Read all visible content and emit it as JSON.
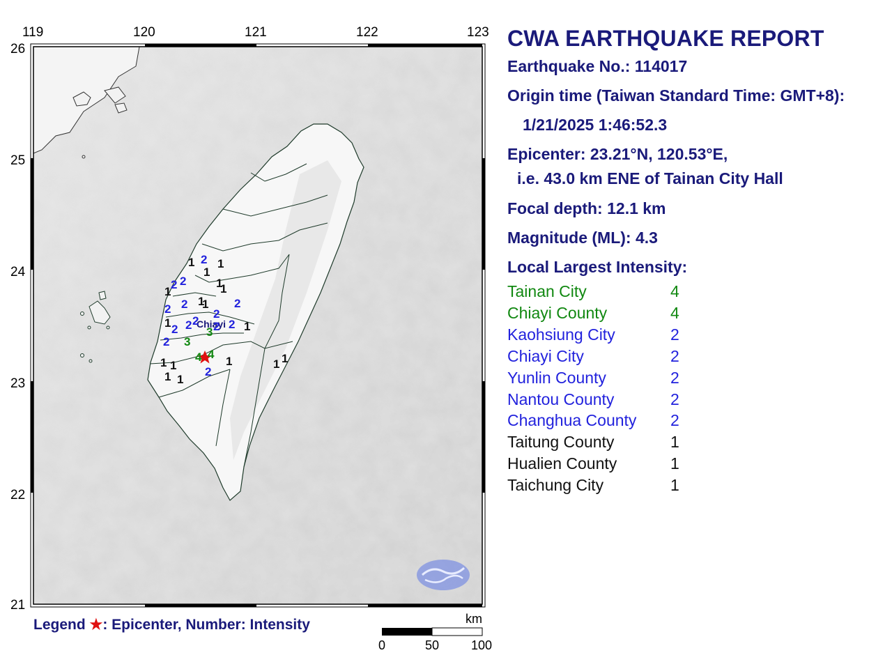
{
  "map": {
    "lon_ticks": [
      "119",
      "120",
      "121",
      "122",
      "123"
    ],
    "lat_ticks": [
      "26",
      "25",
      "24",
      "23",
      "22",
      "21"
    ],
    "city_label": "Chiayi",
    "epicenter_symbol": "star",
    "logo": "CWA-cloud-logo",
    "station_intensities": [
      {
        "v": "1",
        "c": "black"
      },
      {
        "v": "2",
        "c": "blue"
      },
      {
        "v": "1",
        "c": "black"
      },
      {
        "v": "1",
        "c": "black"
      },
      {
        "v": "2",
        "c": "blue"
      },
      {
        "v": "2",
        "c": "blue"
      },
      {
        "v": "1",
        "c": "black"
      },
      {
        "v": "1",
        "c": "black"
      },
      {
        "v": "1",
        "c": "black"
      },
      {
        "v": "2",
        "c": "blue"
      },
      {
        "v": "2",
        "c": "blue"
      },
      {
        "v": "1",
        "c": "black"
      },
      {
        "v": "1",
        "c": "black"
      },
      {
        "v": "2",
        "c": "blue"
      },
      {
        "v": "2",
        "c": "blue"
      },
      {
        "v": "1",
        "c": "black"
      },
      {
        "v": "2",
        "c": "blue"
      },
      {
        "v": "2",
        "c": "blue"
      },
      {
        "v": "2",
        "c": "blue"
      },
      {
        "v": "2",
        "c": "blue"
      },
      {
        "v": "2",
        "c": "blue"
      },
      {
        "v": "1",
        "c": "black"
      },
      {
        "v": "3",
        "c": "green"
      },
      {
        "v": "3",
        "c": "green"
      },
      {
        "v": "2",
        "c": "blue"
      },
      {
        "v": "4",
        "c": "green"
      },
      {
        "v": "4",
        "c": "green"
      },
      {
        "v": "1",
        "c": "black"
      },
      {
        "v": "1",
        "c": "black"
      },
      {
        "v": "1",
        "c": "black"
      },
      {
        "v": "2",
        "c": "blue"
      },
      {
        "v": "1",
        "c": "black"
      },
      {
        "v": "1",
        "c": "black"
      },
      {
        "v": "1",
        "c": "black"
      },
      {
        "v": "1",
        "c": "black"
      }
    ]
  },
  "legend": {
    "prefix": "Legend ",
    "star": "★",
    "text": ": Epicenter, Number: Intensity"
  },
  "scale": {
    "unit": "km",
    "labels": [
      "0",
      "50",
      "100"
    ]
  },
  "report": {
    "title": "CWA EARTHQUAKE REPORT",
    "eq_no": "Earthquake No.: 114017",
    "origin_label": "Origin time (Taiwan Standard Time: GMT+8):",
    "origin_value": "1/21/2025  1:46:52.3",
    "epicenter": "Epicenter: 23.21°N, 120.53°E,",
    "epicenter_rel": "i.e. 43.0 km ENE of Tainan City Hall",
    "depth": "Focal depth: 12.1 km",
    "magnitude": "Magnitude (ML): 4.3",
    "intensity_header": "Local Largest Intensity:",
    "intensities": [
      {
        "region": "Tainan City",
        "value": "4",
        "color": "#118811"
      },
      {
        "region": "Chiayi County",
        "value": "4",
        "color": "#118811"
      },
      {
        "region": "Kaohsiung City",
        "value": "2",
        "color": "#2222dd"
      },
      {
        "region": "Chiayi City",
        "value": "2",
        "color": "#2222dd"
      },
      {
        "region": "Yunlin County",
        "value": "2",
        "color": "#2222dd"
      },
      {
        "region": "Nantou County",
        "value": "2",
        "color": "#2222dd"
      },
      {
        "region": "Changhua County",
        "value": "2",
        "color": "#2222dd"
      },
      {
        "region": "Taitung County",
        "value": "1",
        "color": "#111111"
      },
      {
        "region": "Hualien County",
        "value": "1",
        "color": "#111111"
      },
      {
        "region": "Taichung City",
        "value": "1",
        "color": "#111111"
      }
    ]
  }
}
